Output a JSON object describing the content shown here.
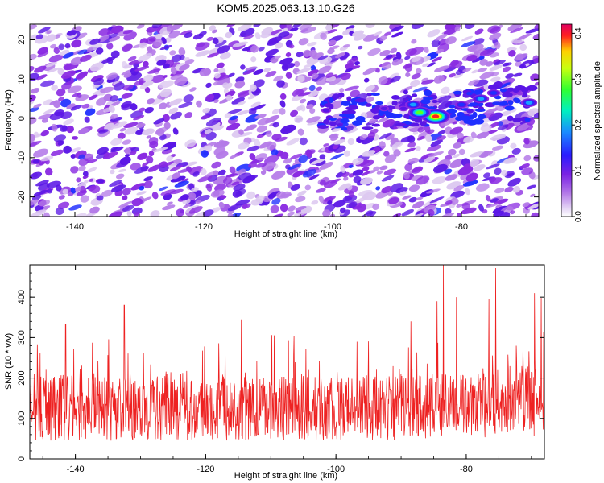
{
  "title": "KOM5.2025.063.13.10.G26",
  "colors": {
    "spectrogram": [
      "#ffffff",
      "#dcc8f0",
      "#b47ae8",
      "#8a2be2",
      "#5a16e6",
      "#1f2fff",
      "#1aa0ff",
      "#00ffb0",
      "#5cff20",
      "#ffea00",
      "#ff2020",
      "#e00060"
    ],
    "snr_line": "#ee2222"
  },
  "chart_data": [
    {
      "type": "heatmap",
      "xlabel": "Height of straight line (km)",
      "ylabel": "Frequency (Hz)",
      "xlim": [
        -147,
        -68
      ],
      "ylim": [
        -25,
        24
      ],
      "xticks": [
        -140,
        -120,
        -100,
        -80
      ],
      "yticks": [
        -20,
        -10,
        0,
        10,
        20
      ],
      "colorbar": {
        "label": "Normalized spectral amplitude",
        "range": [
          0.0,
          0.42
        ],
        "ticks": [
          0.0,
          0.1,
          0.2,
          0.3,
          0.4
        ]
      },
      "hot_spots": [
        {
          "x": -84,
          "y": 0.5,
          "value": 0.41
        },
        {
          "x": -86.5,
          "y": 1.5,
          "value": 0.33
        },
        {
          "x": -87.5,
          "y": 3.5,
          "value": 0.22
        },
        {
          "x": -77,
          "y": 5,
          "value": 0.2
        },
        {
          "x": -75,
          "y": 6.5,
          "value": 0.18
        },
        {
          "x": -69.5,
          "y": 4,
          "value": 0.2
        },
        {
          "x": -80,
          "y": 3.5,
          "value": 0.16
        },
        {
          "x": -101,
          "y": 2,
          "value": 0.15
        },
        {
          "x": -92,
          "y": 2.5,
          "value": 0.14
        },
        {
          "x": -89,
          "y": 2.5,
          "value": 0.14
        },
        {
          "x": -146,
          "y": -11,
          "value": 0.13
        },
        {
          "x": -136,
          "y": -16,
          "value": 0.12
        },
        {
          "x": -140,
          "y": -5,
          "value": 0.11
        },
        {
          "x": -128,
          "y": 20,
          "value": 0.1
        },
        {
          "x": -117,
          "y": -20,
          "value": 0.1
        }
      ],
      "grid": false
    },
    {
      "type": "line",
      "xlabel": "Height of straight line (km)",
      "ylabel": "SNR (10 * v/v)",
      "xlim": [
        -147,
        -68
      ],
      "ylim": [
        0,
        480
      ],
      "xticks": [
        -140,
        -120,
        -100,
        -80
      ],
      "yticks": [
        0,
        100,
        200,
        300,
        400
      ],
      "series": [
        {
          "baseline_mean": 125,
          "noise_range": [
            0,
            300
          ],
          "peaks": [
            {
              "x": -141.5,
              "y": 333
            },
            {
              "x": -132.5,
              "y": 380
            },
            {
              "x": -114.5,
              "y": 345
            },
            {
              "x": -88.5,
              "y": 340
            },
            {
              "x": -84.5,
              "y": 390
            },
            {
              "x": -83.5,
              "y": 480
            },
            {
              "x": -81.5,
              "y": 400
            },
            {
              "x": -76.5,
              "y": 395
            },
            {
              "x": -75.5,
              "y": 472
            },
            {
              "x": -69.5,
              "y": 410
            },
            {
              "x": -68.5,
              "y": 398
            }
          ]
        }
      ],
      "grid": false
    }
  ]
}
